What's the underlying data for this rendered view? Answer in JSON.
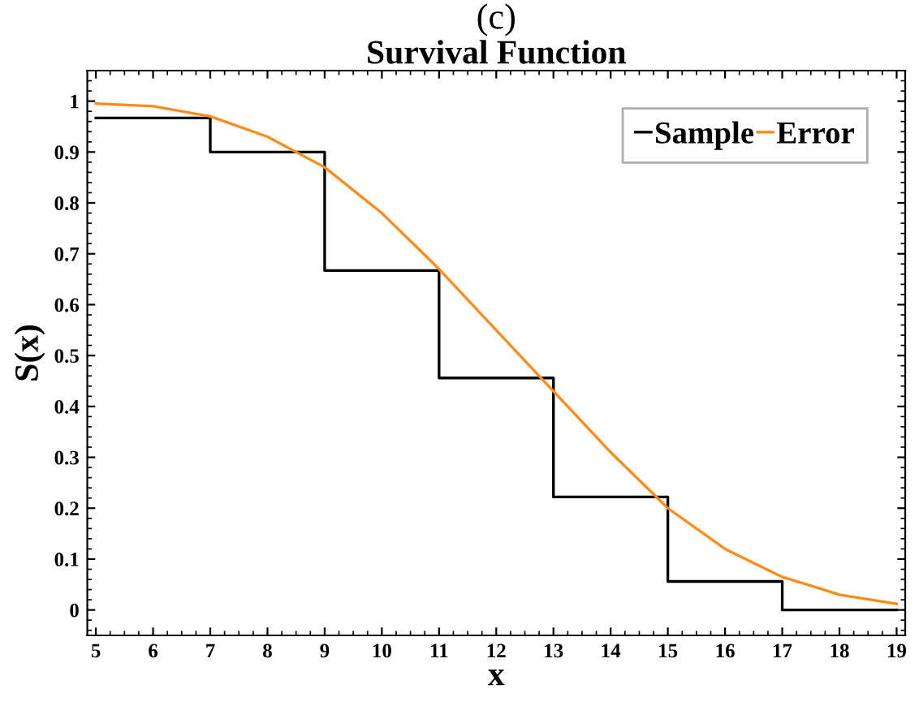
{
  "chart_data": {
    "type": "line",
    "title": "Survival Function",
    "annotations": [
      "(c)"
    ],
    "xlabel": "x",
    "ylabel": "S(x)",
    "xlim": [
      4.85,
      19.15
    ],
    "ylim": [
      -0.05,
      1.06
    ],
    "xticks": [
      5,
      6,
      7,
      8,
      9,
      10,
      11,
      12,
      13,
      14,
      15,
      16,
      17,
      18,
      19
    ],
    "yticks": [
      0,
      0.1,
      0.2,
      0.3,
      0.4,
      0.5,
      0.6,
      0.7,
      0.8,
      0.9,
      1
    ],
    "grid": false,
    "legend": "top right",
    "marker": "none",
    "series": [
      {
        "name": "Sample",
        "type": "step",
        "color": "#000000",
        "x": [
          5,
          7,
          9,
          11,
          13,
          15,
          17,
          19
        ],
        "values": [
          0.967,
          0.9,
          0.667,
          0.456,
          0.222,
          0.056,
          0,
          0
        ]
      },
      {
        "name": "Error",
        "color": "#ff8c1a",
        "x": [
          5,
          6,
          7,
          8,
          9,
          10,
          11,
          12,
          13,
          14,
          15,
          16,
          17,
          18,
          19
        ],
        "values": [
          0.995,
          0.99,
          0.97,
          0.93,
          0.87,
          0.78,
          0.67,
          0.55,
          0.43,
          0.31,
          0.2,
          0.12,
          0.065,
          0.03,
          0.012
        ]
      }
    ]
  }
}
